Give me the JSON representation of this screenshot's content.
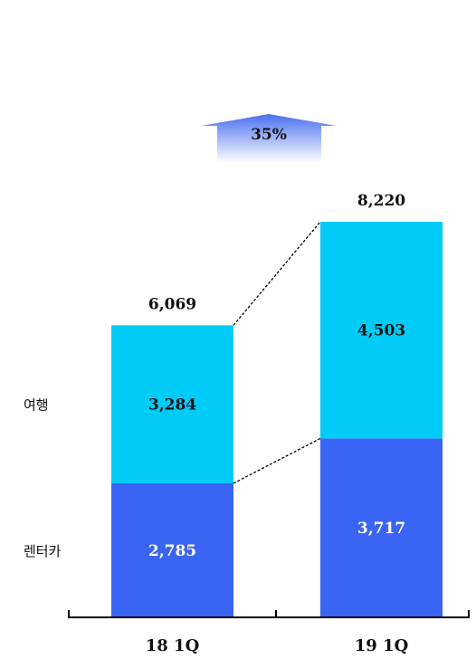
{
  "chart_data": {
    "type": "bar",
    "stacked": true,
    "categories": [
      "18 1Q",
      "19 1Q"
    ],
    "series": [
      {
        "name": "렌터카",
        "values": [
          2785,
          3717
        ],
        "color": "#3a64f4"
      },
      {
        "name": "여행",
        "values": [
          3284,
          4503
        ],
        "color": "#00ccf7"
      }
    ],
    "totals": [
      6069,
      8220
    ],
    "total_labels": [
      "6,069",
      "8,220"
    ],
    "value_labels": [
      [
        "2,785",
        "3,717"
      ],
      [
        "3,284",
        "4,503"
      ]
    ],
    "growth_label": "35%",
    "legend_placement": "left",
    "ylim": [
      0,
      8220
    ],
    "grid": false
  }
}
